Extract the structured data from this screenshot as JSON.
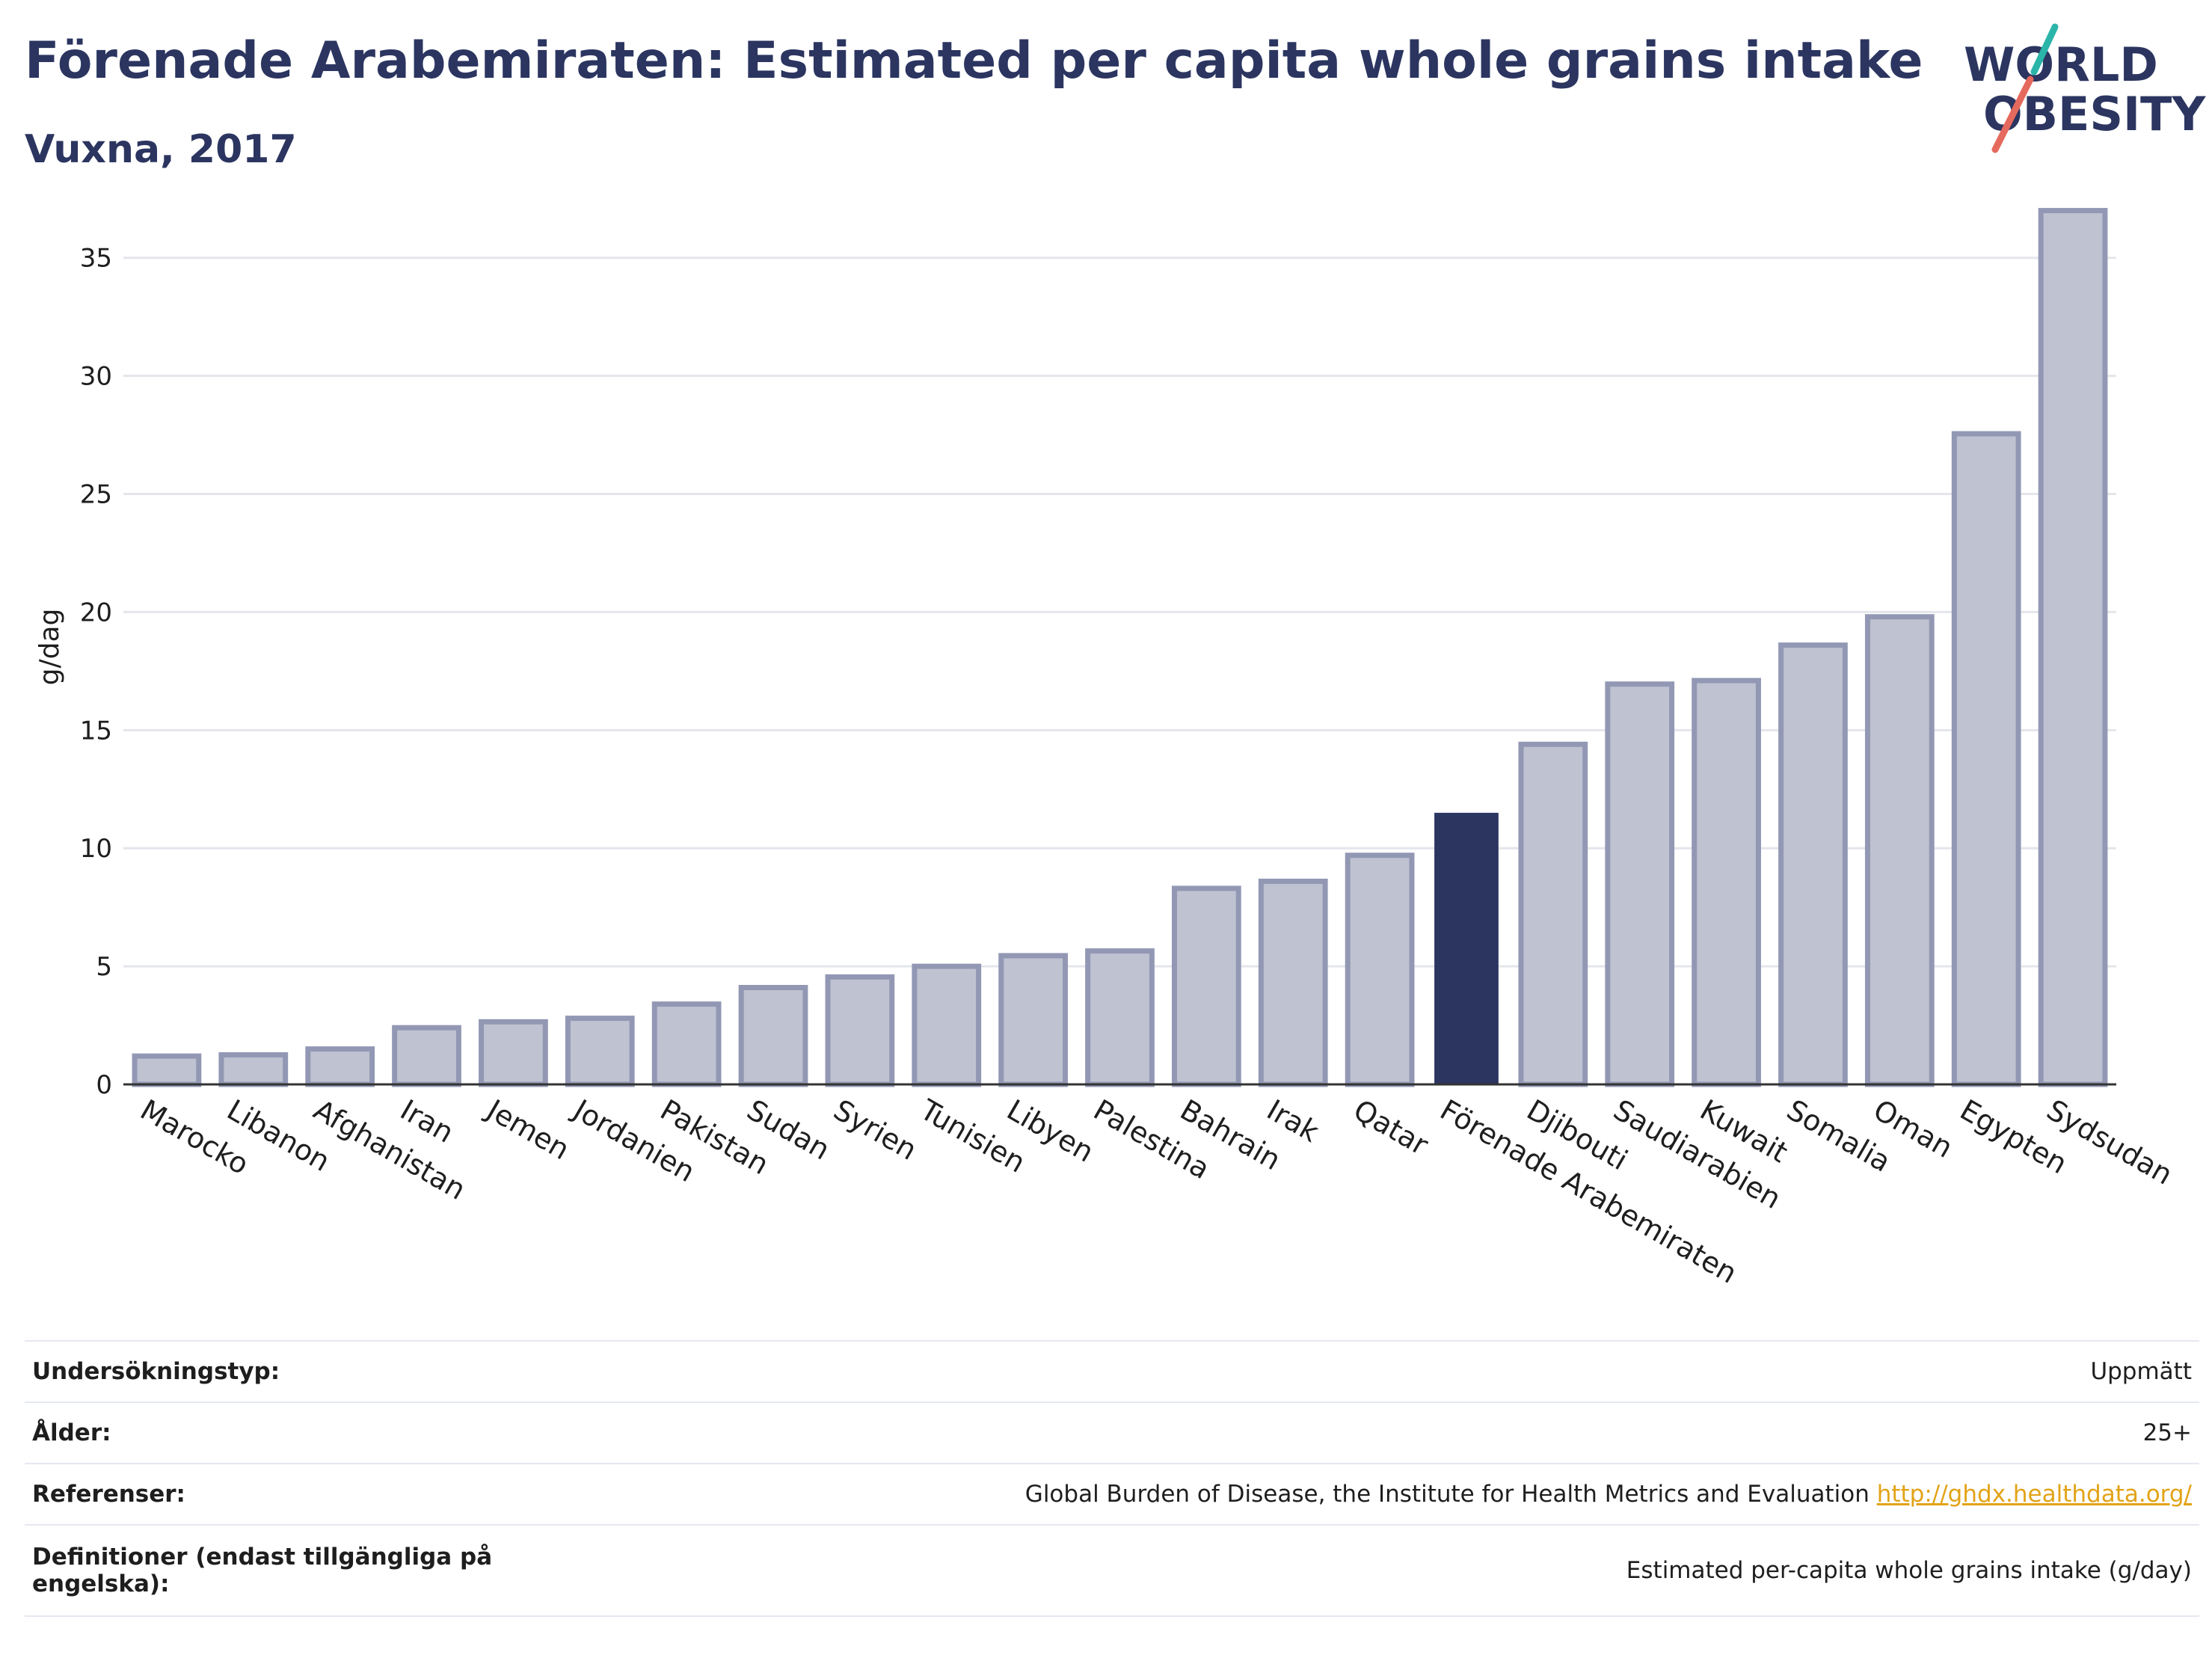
{
  "header": {
    "title": "Förenade Arabemiraten: Estimated per capita whole grains intake",
    "subtitle": "Vuxna, 2017"
  },
  "logo": {
    "line1": "WORLD",
    "line2": "OBESITY"
  },
  "colors": {
    "highlight": "#2b3560",
    "bar_fill": "#bfc2d0",
    "bar_stroke": "#9298b4",
    "grid": "#e4e6ec"
  },
  "chart_data": {
    "type": "bar",
    "ylabel": "g/dag",
    "ylim": [
      0,
      38
    ],
    "yticks": [
      0,
      5,
      10,
      15,
      20,
      25,
      30,
      35
    ],
    "grid": true,
    "highlight": "Förenade Arabemiraten",
    "categories": [
      "Marocko",
      "Libanon",
      "Afghanistan",
      "Iran",
      "Jemen",
      "Jordanien",
      "Pakistan",
      "Sudan",
      "Syrien",
      "Tunisien",
      "Libyen",
      "Palestina",
      "Bahrain",
      "Irak",
      "Qatar",
      "Förenade Arabemiraten",
      "Djibouti",
      "Saudiarabien",
      "Kuwait",
      "Somalia",
      "Oman",
      "Egypten",
      "Sydsudan"
    ],
    "values": [
      1.2,
      1.25,
      1.5,
      2.4,
      2.65,
      2.8,
      3.4,
      4.1,
      4.55,
      5.0,
      5.45,
      5.65,
      8.3,
      8.6,
      9.7,
      11.5,
      14.4,
      16.95,
      17.1,
      18.6,
      19.8,
      27.55,
      37.0
    ]
  },
  "info_table": [
    {
      "key": "Undersökningstyp:",
      "value": "Uppmätt"
    },
    {
      "key": "Ålder:",
      "value": "25+"
    },
    {
      "key": "Referenser:",
      "value": "Global Burden of Disease, the Institute for Health Metrics and Evaluation",
      "link": "http://ghdx.healthdata.org/"
    },
    {
      "key": "Definitioner (endast tillgängliga på engelska):",
      "value": "Estimated per-capita whole grains intake (g/day)"
    }
  ]
}
